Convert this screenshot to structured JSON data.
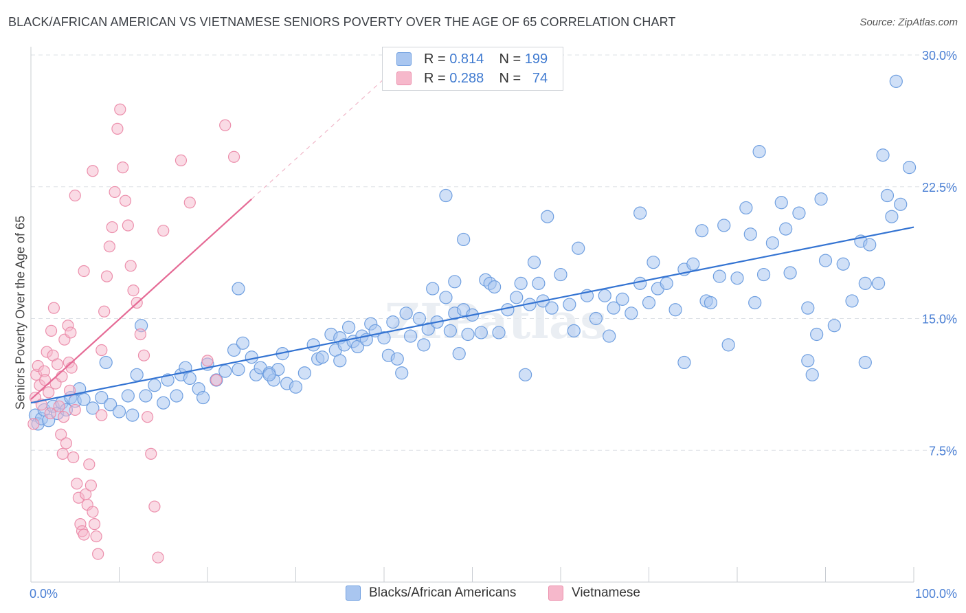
{
  "header": {
    "title": "BLACK/AFRICAN AMERICAN VS VIETNAMESE SENIORS POVERTY OVER THE AGE OF 65 CORRELATION CHART",
    "source": "Source: ZipAtlas.com"
  },
  "watermark": "ZIPatlas",
  "legend": {
    "r_label": "R =",
    "n_label": "N =",
    "rows": [
      {
        "r": "0.814",
        "n": "199",
        "color": "#a9c6f0"
      },
      {
        "r": "0.288",
        "n": "74",
        "color": "#f6b8cb"
      }
    ]
  },
  "colors": {
    "blue_fill": "#a9c6f0",
    "blue_stroke": "#6f9fe0",
    "blue_line": "#3373d2",
    "pink_fill": "#f6b8cb",
    "pink_stroke": "#ec8fac",
    "pink_line": "#e56a95",
    "tick_label": "#4a7fd4",
    "grid": "#dde1e6"
  },
  "chart_data": {
    "type": "scatter",
    "title": "BLACK/AFRICAN AMERICAN VS VIETNAMESE SENIORS POVERTY OVER THE AGE OF 65 CORRELATION CHART",
    "xlabel": "",
    "ylabel": "Seniors Poverty Over the Age of 65",
    "xlim": [
      0,
      100
    ],
    "ylim": [
      0,
      30
    ],
    "x_tick_labels": [
      "0.0%",
      "100.0%"
    ],
    "y_ticks": [
      7.5,
      15.0,
      22.5,
      30.0
    ],
    "y_tick_labels": [
      "7.5%",
      "15.0%",
      "22.5%",
      "30.0%"
    ],
    "grid": true,
    "legend_position": "bottom-center",
    "series": [
      {
        "name": "Blacks/African Americans",
        "r": 0.814,
        "n": 199,
        "trend": {
          "x": [
            0,
            100
          ],
          "y": [
            10.2,
            20.2
          ]
        },
        "points": [
          [
            0.5,
            9.5
          ],
          [
            0.8,
            9.0
          ],
          [
            1.2,
            9.3
          ],
          [
            1.5,
            9.8
          ],
          [
            2.0,
            9.2
          ],
          [
            2.5,
            10.0
          ],
          [
            3.0,
            9.6
          ],
          [
            3.5,
            10.2
          ],
          [
            4.0,
            9.8
          ],
          [
            4.5,
            10.5
          ],
          [
            5.0,
            10.3
          ],
          [
            5.5,
            11.0
          ],
          [
            6.0,
            10.4
          ],
          [
            7.0,
            9.9
          ],
          [
            8.0,
            10.5
          ],
          [
            8.5,
            12.5
          ],
          [
            9.0,
            10.1
          ],
          [
            10.0,
            9.7
          ],
          [
            11.0,
            10.6
          ],
          [
            11.5,
            9.5
          ],
          [
            12.0,
            11.8
          ],
          [
            13.0,
            10.6
          ],
          [
            14.0,
            11.2
          ],
          [
            15.0,
            10.2
          ],
          [
            15.5,
            11.5
          ],
          [
            16.5,
            10.6
          ],
          [
            17.0,
            11.8
          ],
          [
            17.5,
            12.2
          ],
          [
            18.0,
            11.6
          ],
          [
            19.0,
            11.0
          ],
          [
            19.5,
            10.5
          ],
          [
            20.0,
            12.4
          ],
          [
            21.0,
            11.5
          ],
          [
            22.0,
            12.0
          ],
          [
            23.0,
            13.2
          ],
          [
            23.5,
            12.1
          ],
          [
            24.0,
            13.6
          ],
          [
            25.0,
            12.8
          ],
          [
            25.5,
            11.8
          ],
          [
            26.0,
            12.2
          ],
          [
            27.0,
            11.9
          ],
          [
            27.5,
            11.5
          ],
          [
            28.0,
            12.1
          ],
          [
            28.5,
            13.0
          ],
          [
            29.0,
            11.3
          ],
          [
            30.0,
            11.1
          ],
          [
            31.0,
            11.9
          ],
          [
            32.0,
            13.5
          ],
          [
            32.5,
            12.7
          ],
          [
            33.0,
            12.8
          ],
          [
            34.0,
            14.1
          ],
          [
            34.5,
            13.2
          ],
          [
            35.0,
            13.9
          ],
          [
            35.5,
            13.5
          ],
          [
            36.0,
            14.5
          ],
          [
            36.5,
            13.7
          ],
          [
            37.0,
            13.4
          ],
          [
            37.5,
            14.0
          ],
          [
            38.0,
            13.8
          ],
          [
            38.5,
            14.7
          ],
          [
            39.0,
            14.3
          ],
          [
            40.0,
            13.9
          ],
          [
            40.5,
            12.9
          ],
          [
            41.0,
            14.8
          ],
          [
            41.5,
            12.7
          ],
          [
            42.0,
            11.9
          ],
          [
            42.5,
            15.3
          ],
          [
            43.0,
            14.0
          ],
          [
            44.0,
            15.0
          ],
          [
            44.5,
            13.5
          ],
          [
            45.0,
            14.4
          ],
          [
            45.5,
            16.7
          ],
          [
            46.0,
            14.8
          ],
          [
            47.0,
            16.2
          ],
          [
            47.5,
            14.3
          ],
          [
            48.0,
            15.3
          ],
          [
            48.5,
            13.0
          ],
          [
            49.0,
            15.5
          ],
          [
            49.5,
            14.1
          ],
          [
            50.0,
            15.2
          ],
          [
            51.0,
            14.2
          ],
          [
            51.5,
            17.2
          ],
          [
            52.0,
            17.0
          ],
          [
            52.5,
            16.8
          ],
          [
            53.0,
            14.2
          ],
          [
            54.0,
            15.5
          ],
          [
            55.0,
            16.2
          ],
          [
            56.0,
            11.8
          ],
          [
            56.5,
            15.8
          ],
          [
            57.0,
            18.2
          ],
          [
            57.5,
            17.0
          ],
          [
            58.0,
            16.0
          ],
          [
            59.0,
            15.6
          ],
          [
            60.0,
            17.5
          ],
          [
            61.0,
            15.8
          ],
          [
            61.5,
            14.3
          ],
          [
            62.0,
            19.0
          ],
          [
            63.0,
            16.3
          ],
          [
            64.0,
            15.0
          ],
          [
            65.0,
            16.3
          ],
          [
            66.0,
            15.6
          ],
          [
            67.0,
            16.1
          ],
          [
            68.0,
            15.3
          ],
          [
            69.0,
            17.0
          ],
          [
            70.0,
            15.9
          ],
          [
            70.5,
            18.2
          ],
          [
            71.0,
            16.7
          ],
          [
            72.0,
            17.0
          ],
          [
            73.0,
            15.5
          ],
          [
            74.0,
            17.8
          ],
          [
            75.0,
            18.1
          ],
          [
            76.0,
            20.0
          ],
          [
            76.5,
            16.0
          ],
          [
            77.0,
            15.9
          ],
          [
            78.0,
            17.4
          ],
          [
            78.5,
            20.3
          ],
          [
            79.0,
            13.5
          ],
          [
            80.0,
            17.3
          ],
          [
            81.0,
            21.3
          ],
          [
            81.5,
            19.8
          ],
          [
            82.0,
            15.9
          ],
          [
            83.0,
            17.5
          ],
          [
            84.0,
            19.3
          ],
          [
            85.0,
            21.6
          ],
          [
            85.5,
            20.1
          ],
          [
            86.0,
            17.6
          ],
          [
            87.0,
            21.0
          ],
          [
            88.0,
            15.6
          ],
          [
            88.5,
            11.8
          ],
          [
            89.0,
            14.1
          ],
          [
            90.0,
            18.3
          ],
          [
            91.0,
            14.6
          ],
          [
            92.0,
            18.1
          ],
          [
            93.0,
            16.0
          ],
          [
            94.0,
            19.4
          ],
          [
            94.5,
            17.0
          ],
          [
            95.0,
            19.2
          ],
          [
            96.0,
            17.0
          ],
          [
            97.0,
            22.0
          ],
          [
            97.5,
            20.8
          ],
          [
            12.5,
            14.6
          ],
          [
            23.5,
            16.7
          ],
          [
            47.0,
            22.0
          ],
          [
            49.0,
            19.5
          ],
          [
            58.5,
            20.8
          ],
          [
            69.0,
            21.0
          ],
          [
            82.5,
            24.5
          ],
          [
            89.5,
            21.8
          ],
          [
            94.5,
            12.5
          ],
          [
            96.5,
            24.3
          ],
          [
            98.0,
            28.5
          ],
          [
            99.5,
            23.6
          ],
          [
            98.5,
            21.5
          ],
          [
            88.0,
            12.6
          ],
          [
            74.0,
            12.5
          ],
          [
            65.5,
            14.0
          ],
          [
            55.5,
            17.0
          ],
          [
            48.0,
            17.1
          ],
          [
            35.0,
            12.6
          ],
          [
            27.0,
            11.8
          ]
        ]
      },
      {
        "name": "Vietnamese",
        "r": 0.288,
        "n": 74,
        "trend": {
          "x": [
            0,
            25
          ],
          "y": [
            10.4,
            21.8
          ]
        },
        "points": [
          [
            0.3,
            9.0
          ],
          [
            0.5,
            10.5
          ],
          [
            0.6,
            11.8
          ],
          [
            0.8,
            12.3
          ],
          [
            1.0,
            11.2
          ],
          [
            1.2,
            10.1
          ],
          [
            1.5,
            12.0
          ],
          [
            1.6,
            11.5
          ],
          [
            1.8,
            13.1
          ],
          [
            2.0,
            10.8
          ],
          [
            2.2,
            9.6
          ],
          [
            2.3,
            14.3
          ],
          [
            2.5,
            12.9
          ],
          [
            2.6,
            15.6
          ],
          [
            2.8,
            11.3
          ],
          [
            3.0,
            12.4
          ],
          [
            3.2,
            10.0
          ],
          [
            3.4,
            8.4
          ],
          [
            3.5,
            11.7
          ],
          [
            3.6,
            7.3
          ],
          [
            3.7,
            9.4
          ],
          [
            3.8,
            13.8
          ],
          [
            4.0,
            7.9
          ],
          [
            4.2,
            14.6
          ],
          [
            4.3,
            12.5
          ],
          [
            4.4,
            10.9
          ],
          [
            4.5,
            14.2
          ],
          [
            4.6,
            12.2
          ],
          [
            4.8,
            7.1
          ],
          [
            5.0,
            9.8
          ],
          [
            5.2,
            5.6
          ],
          [
            5.4,
            4.8
          ],
          [
            5.6,
            3.3
          ],
          [
            5.8,
            2.9
          ],
          [
            6.0,
            2.7
          ],
          [
            6.2,
            5.0
          ],
          [
            6.4,
            4.4
          ],
          [
            6.6,
            6.7
          ],
          [
            6.8,
            5.5
          ],
          [
            7.0,
            4.0
          ],
          [
            7.2,
            3.3
          ],
          [
            7.4,
            2.6
          ],
          [
            7.6,
            1.6
          ],
          [
            8.0,
            13.2
          ],
          [
            8.3,
            15.4
          ],
          [
            8.6,
            17.4
          ],
          [
            8.9,
            19.1
          ],
          [
            9.2,
            20.2
          ],
          [
            9.5,
            22.2
          ],
          [
            9.8,
            25.8
          ],
          [
            10.1,
            26.9
          ],
          [
            10.4,
            23.6
          ],
          [
            10.7,
            21.7
          ],
          [
            11.0,
            20.3
          ],
          [
            11.3,
            18.0
          ],
          [
            11.6,
            16.6
          ],
          [
            12.0,
            15.9
          ],
          [
            12.4,
            14.1
          ],
          [
            12.8,
            12.9
          ],
          [
            13.2,
            9.4
          ],
          [
            13.6,
            7.3
          ],
          [
            14.0,
            4.3
          ],
          [
            14.4,
            1.4
          ],
          [
            15.0,
            20.0
          ],
          [
            17.0,
            24.0
          ],
          [
            18.0,
            21.6
          ],
          [
            20.0,
            12.6
          ],
          [
            21.0,
            11.5
          ],
          [
            22.0,
            26.0
          ],
          [
            23.0,
            24.2
          ],
          [
            5.0,
            22.0
          ],
          [
            6.0,
            17.7
          ],
          [
            7.0,
            23.4
          ],
          [
            8.0,
            9.5
          ]
        ]
      }
    ]
  },
  "bottom_legend": {
    "items": [
      {
        "label": "Blacks/African Americans",
        "color": "#a9c6f0"
      },
      {
        "label": "Vietnamese",
        "color": "#f6b8cb"
      }
    ]
  }
}
